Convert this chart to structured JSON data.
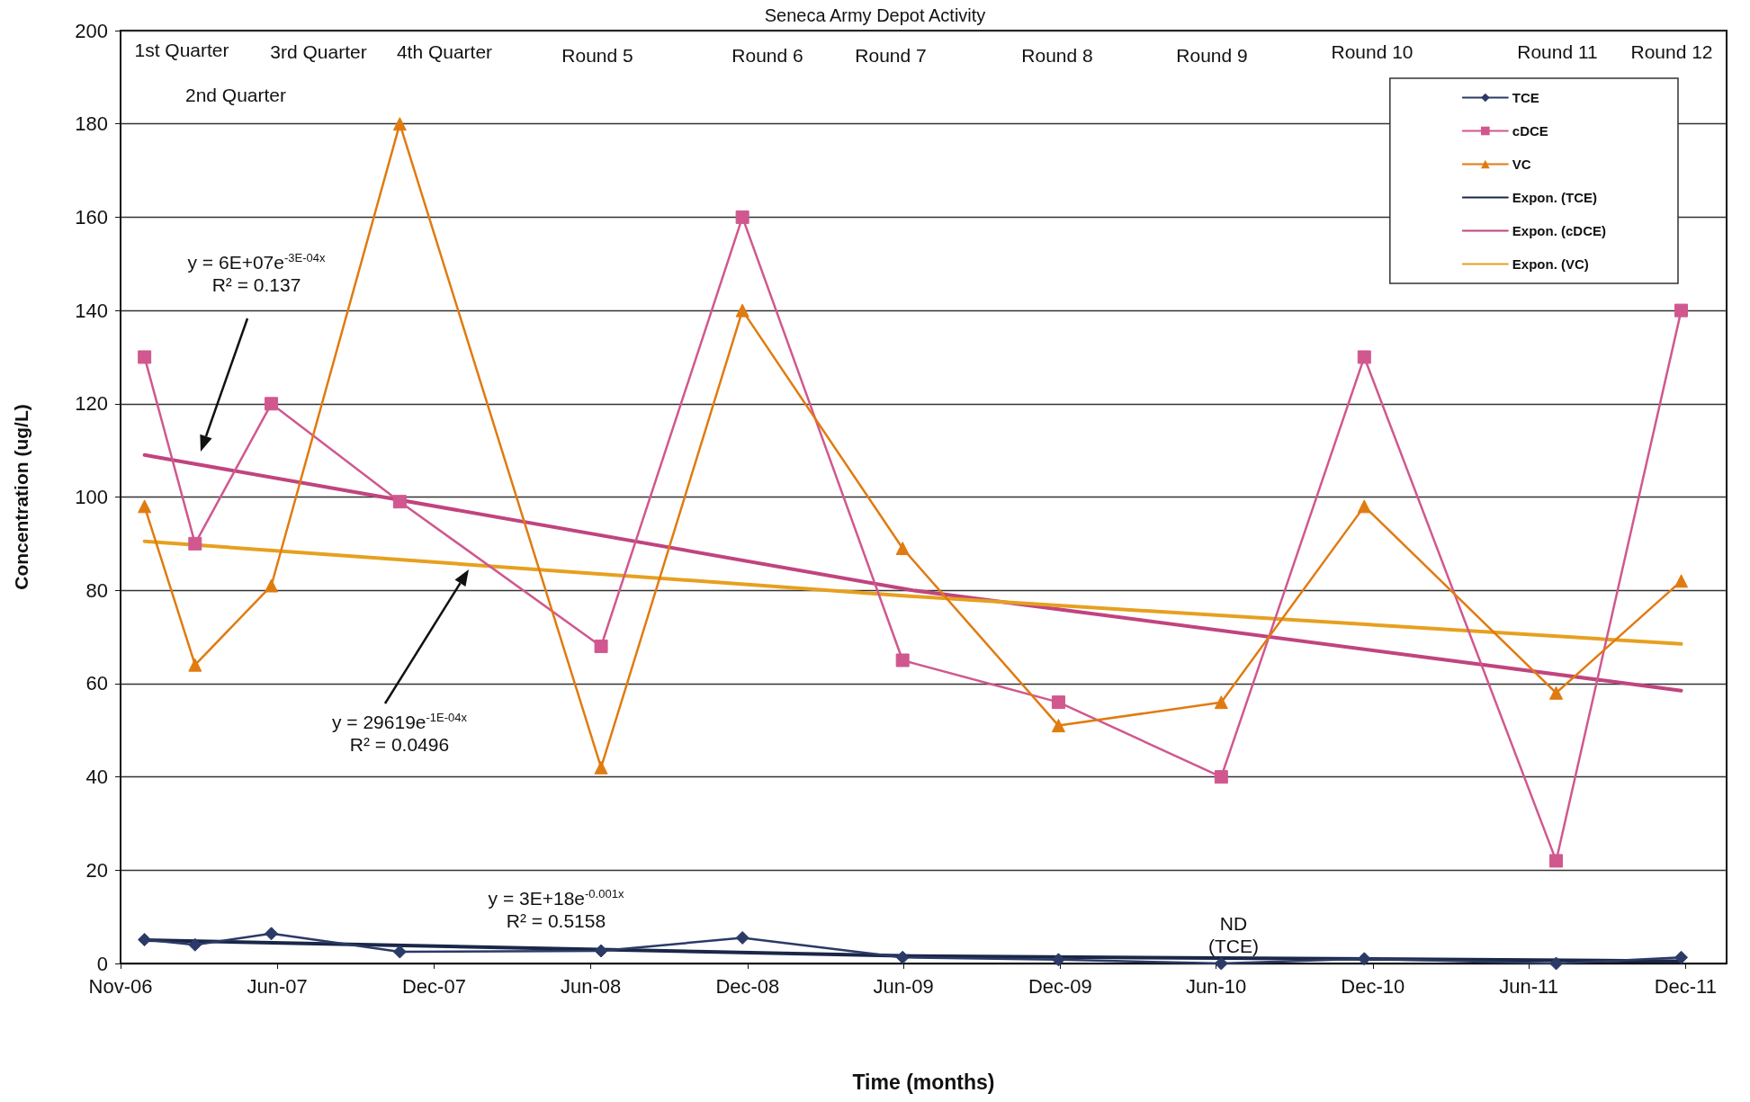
{
  "chart_data": {
    "type": "line",
    "title": "Seneca Army Depot Activity",
    "xlabel": "Time (months)",
    "ylabel": "Concentration (ug/L)",
    "xlim": [
      "2006-11-30",
      "2012-01-18"
    ],
    "xticks": [
      {
        "value": "2006-11-30",
        "label": "Nov-06"
      },
      {
        "value": "2007-06-01",
        "label": "Jun-07"
      },
      {
        "value": "2007-12-01",
        "label": "Dec-07"
      },
      {
        "value": "2008-06-01",
        "label": "Jun-08"
      },
      {
        "value": "2008-12-01",
        "label": "Dec-08"
      },
      {
        "value": "2009-06-01",
        "label": "Jun-09"
      },
      {
        "value": "2009-12-01",
        "label": "Dec-09"
      },
      {
        "value": "2010-06-01",
        "label": "Jun-10"
      },
      {
        "value": "2010-12-01",
        "label": "Dec-10"
      },
      {
        "value": "2011-06-01",
        "label": "Jun-11"
      },
      {
        "value": "2011-12-01",
        "label": "Dec-11"
      }
    ],
    "ylim": [
      0,
      200
    ],
    "yticks": [
      0,
      20,
      40,
      60,
      80,
      100,
      120,
      140,
      160,
      180,
      200
    ],
    "grid": "y",
    "legend": "top right",
    "x": [
      "2006-12-28",
      "2007-02-25",
      "2007-05-25",
      "2007-10-22",
      "2008-06-13",
      "2008-11-25",
      "2009-05-31",
      "2009-11-29",
      "2010-06-07",
      "2010-11-21",
      "2011-07-03",
      "2011-11-26"
    ],
    "series": [
      {
        "name": "TCE",
        "color": "#2b3a67",
        "marker": "diamond",
        "values": [
          5.1,
          4,
          6.4,
          2.5,
          2.7,
          5.5,
          1.3,
          0.8,
          0,
          1,
          0,
          1.3
        ]
      },
      {
        "name": "cDCE",
        "color": "#d0588f",
        "marker": "square",
        "values": [
          130,
          90,
          120,
          99,
          68,
          160,
          65,
          56,
          40,
          130,
          22,
          140
        ]
      },
      {
        "name": "VC",
        "color": "#e07b10",
        "marker": "triangle",
        "values": [
          98,
          64,
          81,
          180,
          42,
          140,
          89,
          51,
          56,
          98,
          58,
          82
        ]
      },
      {
        "name": "Expon. (TCE)",
        "color": "#1a2748",
        "marker": "none",
        "x": [
          "2006-12-28",
          "2009-06-12",
          "2011-11-26"
        ],
        "values": [
          5,
          1.6,
          0.5
        ]
      },
      {
        "name": "Expon. (cDCE)",
        "color": "#c0447f",
        "marker": "none",
        "x": [
          "2006-12-28",
          "2009-06-12",
          "2011-11-26"
        ],
        "values": [
          109,
          80,
          58.5
        ]
      },
      {
        "name": "Expon. (VC)",
        "color": "#e6a020",
        "marker": "none",
        "x": [
          "2006-12-28",
          "2009-06-12",
          "2011-11-26"
        ],
        "values": [
          90.5,
          78.7,
          68.5
        ]
      }
    ],
    "annotations": [
      "1st Quarter",
      "2nd Quarter",
      "3rd Quarter",
      "4th Quarter",
      "Round 5",
      "Round 6",
      "Round 7",
      "Round 8",
      "Round 9",
      "Round 10",
      "Round 11",
      "Round 12",
      "y = 6E+07e$^{-3E-04x}$\nR² = 0.137",
      "y = 29619e$^{-1E-04x}$\nR² = 0.0496",
      "y = 3E+18e$^{-0.001x}$\nR² = 0.5158",
      "ND\n(TCE)"
    ]
  }
}
